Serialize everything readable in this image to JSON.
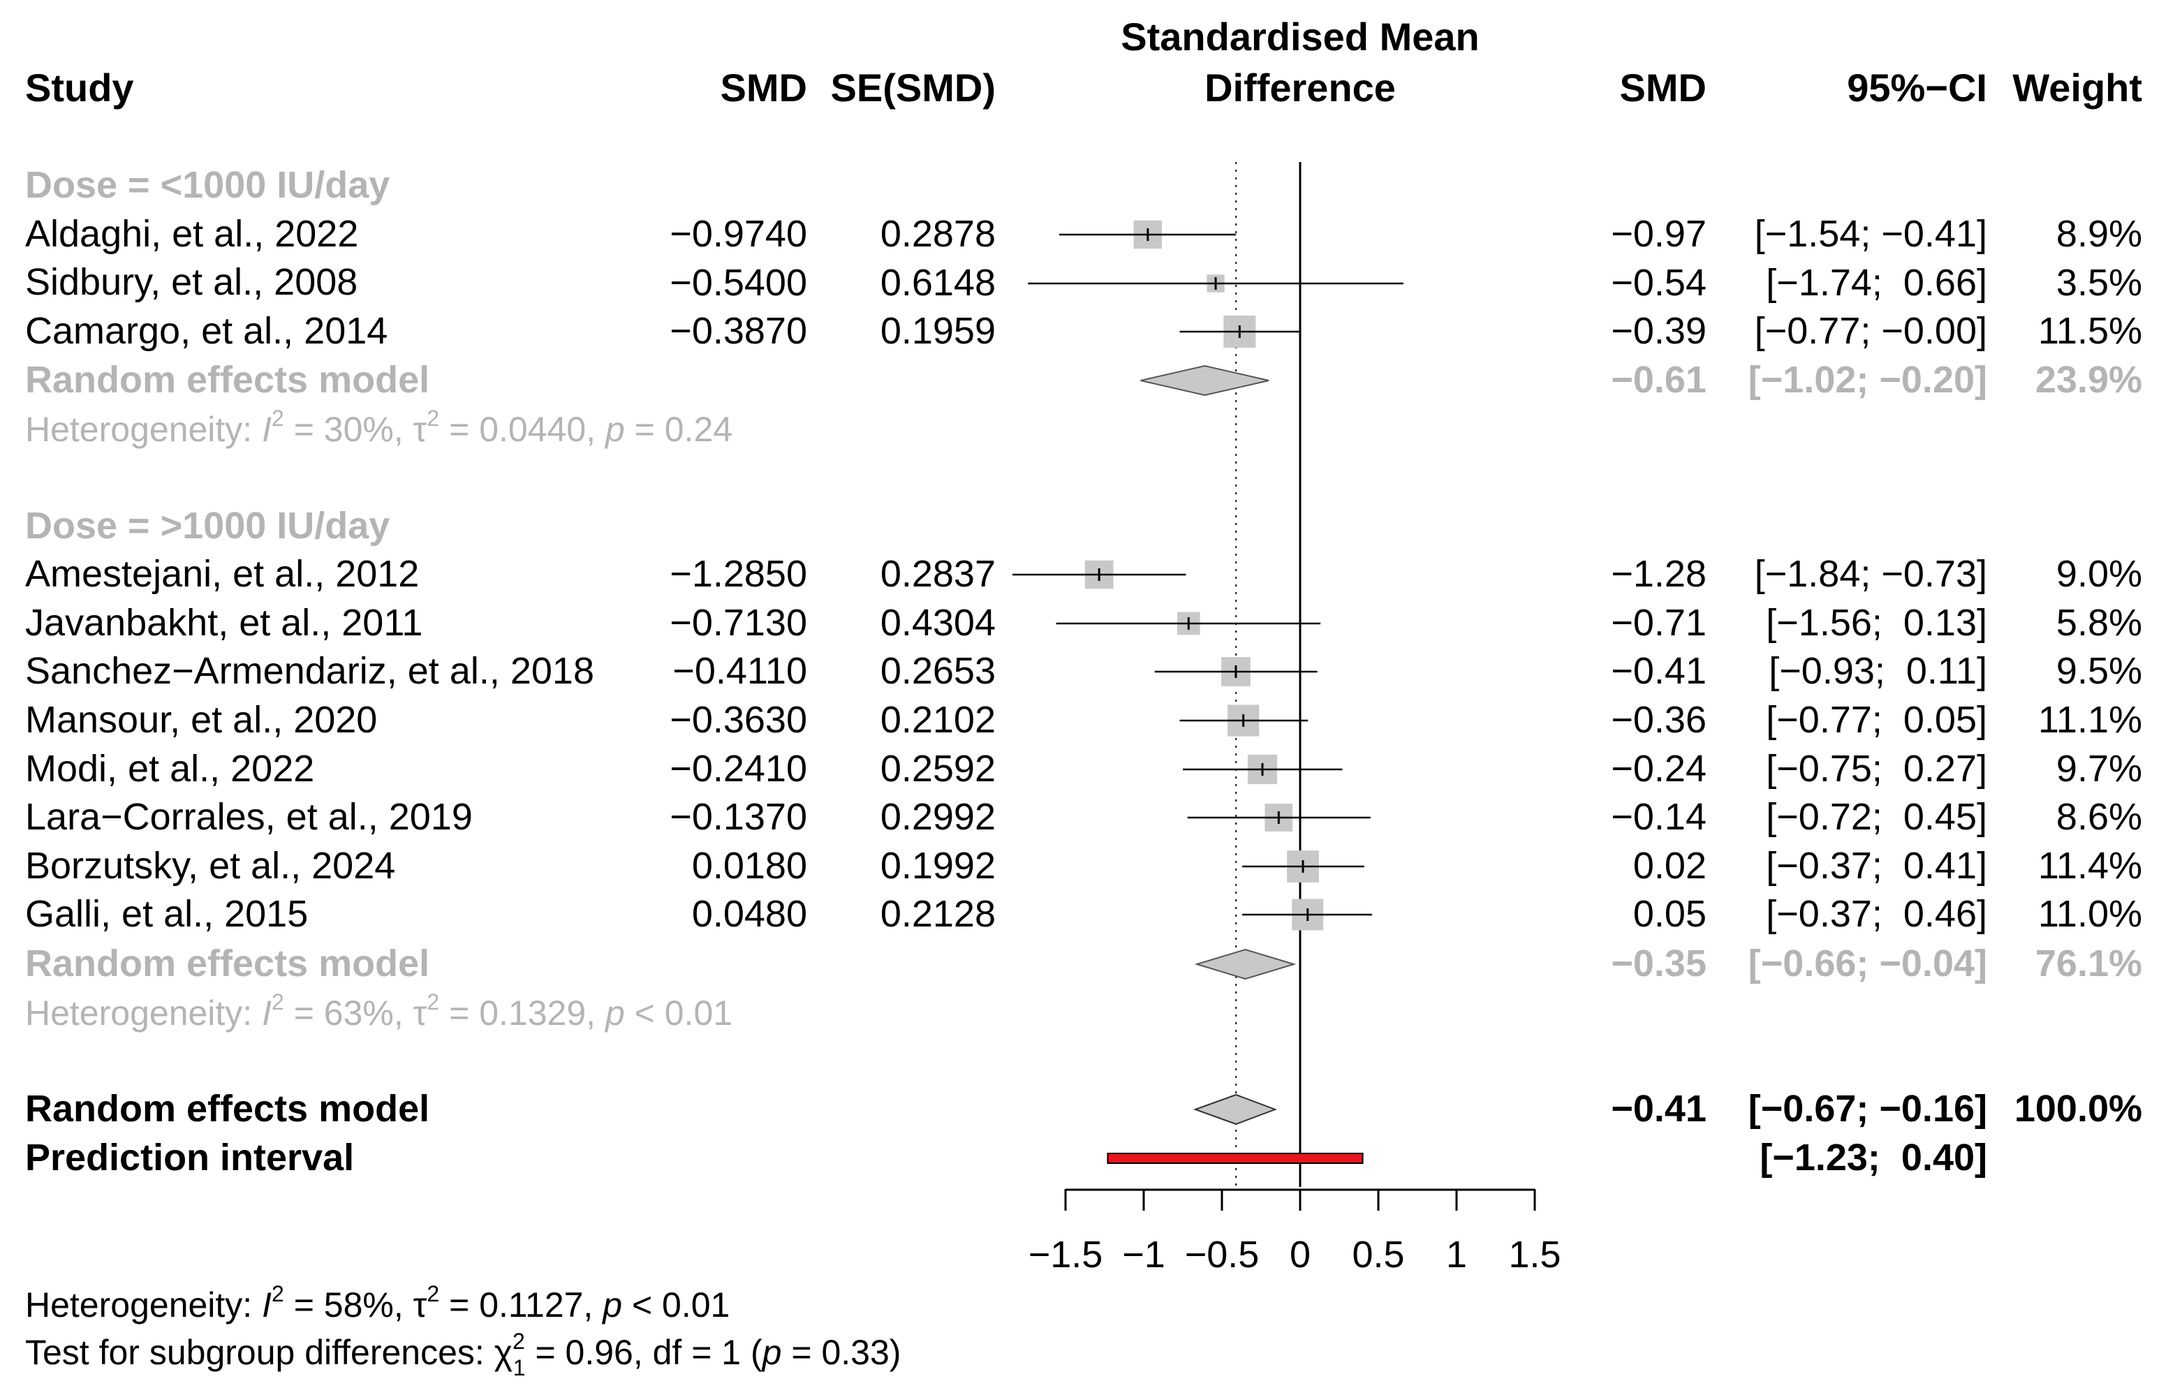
{
  "chart_data": {
    "type": "forest",
    "headers": {
      "study": "Study",
      "smd": "SMD",
      "se": "SE(SMD)",
      "plot_title_1": "Standardised Mean",
      "plot_title_2": "Difference",
      "smd_right": "SMD",
      "ci": "95%−CI",
      "weight": "Weight"
    },
    "groups": [
      {
        "label": "Dose = <1000 IU/day",
        "studies": [
          {
            "name": "Aldaghi, et al., 2022",
            "smd_text": "−0.9740",
            "se_text": "0.2878",
            "est_text": "−0.97",
            "ci_text": "[−1.54; −0.41]",
            "weight_text": "8.9%",
            "est": -0.974,
            "lo": -1.54,
            "hi": -0.41,
            "w": 8.9
          },
          {
            "name": "Sidbury, et al., 2008",
            "smd_text": "−0.5400",
            "se_text": "0.6148",
            "est_text": "−0.54",
            "ci_text": "[−1.74;  0.66]",
            "weight_text": "3.5%",
            "est": -0.54,
            "lo": -1.74,
            "hi": 0.66,
            "w": 3.5
          },
          {
            "name": "Camargo, et al., 2014",
            "smd_text": "−0.3870",
            "se_text": "0.1959",
            "est_text": "−0.39",
            "ci_text": "[−0.77; −0.00]",
            "weight_text": "11.5%",
            "est": -0.387,
            "lo": -0.77,
            "hi": 0.0,
            "w": 11.5
          }
        ],
        "model": {
          "label": "Random effects model",
          "est_text": "−0.61",
          "ci_text": "[−1.02; −0.20]",
          "weight_text": "23.9%",
          "est": -0.61,
          "lo": -1.02,
          "hi": -0.2
        },
        "heterogeneity": {
          "prefix": "Heterogeneity: ",
          "i2": "= 30%, ",
          "tau2": "= 0.0440, ",
          "p": "= 0.24"
        }
      },
      {
        "label": "Dose = >1000 IU/day",
        "studies": [
          {
            "name": "Amestejani, et al., 2012",
            "smd_text": "−1.2850",
            "se_text": "0.2837",
            "est_text": "−1.28",
            "ci_text": "[−1.84; −0.73]",
            "weight_text": "9.0%",
            "est": -1.285,
            "lo": -1.84,
            "hi": -0.73,
            "w": 9.0
          },
          {
            "name": "Javanbakht, et al., 2011",
            "smd_text": "−0.7130",
            "se_text": "0.4304",
            "est_text": "−0.71",
            "ci_text": "[−1.56;  0.13]",
            "weight_text": "5.8%",
            "est": -0.713,
            "lo": -1.56,
            "hi": 0.13,
            "w": 5.8
          },
          {
            "name": "Sanchez−Armendariz, et al., 2018",
            "smd_text": "−0.4110",
            "se_text": "0.2653",
            "est_text": "−0.41",
            "ci_text": "[−0.93;  0.11]",
            "weight_text": "9.5%",
            "est": -0.411,
            "lo": -0.93,
            "hi": 0.11,
            "w": 9.5
          },
          {
            "name": "Mansour, et al., 2020",
            "smd_text": "−0.3630",
            "se_text": "0.2102",
            "est_text": "−0.36",
            "ci_text": "[−0.77;  0.05]",
            "weight_text": "11.1%",
            "est": -0.363,
            "lo": -0.77,
            "hi": 0.05,
            "w": 11.1
          },
          {
            "name": "Modi, et al., 2022",
            "smd_text": "−0.2410",
            "se_text": "0.2592",
            "est_text": "−0.24",
            "ci_text": "[−0.75;  0.27]",
            "weight_text": "9.7%",
            "est": -0.241,
            "lo": -0.75,
            "hi": 0.27,
            "w": 9.7
          },
          {
            "name": "Lara−Corrales, et al., 2019",
            "smd_text": "−0.1370",
            "se_text": "0.2992",
            "est_text": "−0.14",
            "ci_text": "[−0.72;  0.45]",
            "weight_text": "8.6%",
            "est": -0.137,
            "lo": -0.72,
            "hi": 0.45,
            "w": 8.6
          },
          {
            "name": "Borzutsky, et al., 2024",
            "smd_text": "0.0180",
            "se_text": "0.1992",
            "est_text": "0.02",
            "ci_text": "[−0.37;  0.41]",
            "weight_text": "11.4%",
            "est": 0.018,
            "lo": -0.37,
            "hi": 0.41,
            "w": 11.4
          },
          {
            "name": "Galli, et al., 2015",
            "smd_text": "0.0480",
            "se_text": "0.2128",
            "est_text": "0.05",
            "ci_text": "[−0.37;  0.46]",
            "weight_text": "11.0%",
            "est": 0.048,
            "lo": -0.37,
            "hi": 0.46,
            "w": 11.0
          }
        ],
        "model": {
          "label": "Random effects model",
          "est_text": "−0.35",
          "ci_text": "[−0.66; −0.04]",
          "weight_text": "76.1%",
          "est": -0.35,
          "lo": -0.66,
          "hi": -0.04
        },
        "heterogeneity": {
          "prefix": "Heterogeneity: ",
          "i2": "= 63%, ",
          "tau2": "= 0.1329, ",
          "p": "< 0.01"
        }
      }
    ],
    "overall": {
      "label": "Random effects model",
      "est_text": "−0.41",
      "ci_text": "[−0.67; −0.16]",
      "weight_text": "100.0%",
      "est": -0.41,
      "lo": -0.67,
      "hi": -0.16
    },
    "prediction": {
      "label": "Prediction interval",
      "ci_text": "[−1.23;  0.40]",
      "lo": -1.23,
      "hi": 0.4
    },
    "xaxis": {
      "ticks": [
        -1.5,
        -1,
        -0.5,
        0,
        0.5,
        1,
        1.5
      ],
      "tick_labels": [
        "−1.5",
        "−1",
        "−0.5",
        "0",
        "0.5",
        "1",
        "1.5"
      ],
      "range": [
        -1.5,
        1.5
      ]
    },
    "footer": {
      "het_prefix": "Heterogeneity: ",
      "het_i2": "= 58%, ",
      "het_tau2": "= 0.1127, ",
      "het_p": "< 0.01",
      "test_prefix": "Test for subgroup differences: ",
      "test_chi": "= 0.96, df = 1 (",
      "test_p": "= 0.33)"
    },
    "colors": {
      "square": "#c8c8c8",
      "diamond_fill": "#c8c8c8",
      "group_text": "#b4b4b4",
      "prediction": "#e8141e"
    }
  }
}
